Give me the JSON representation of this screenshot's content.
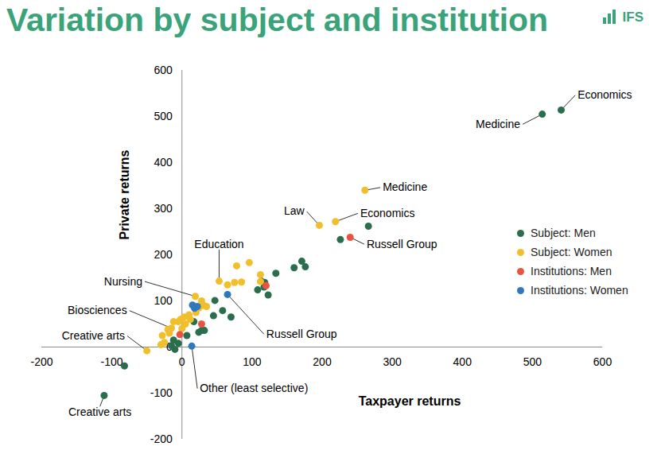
{
  "chart_data": {
    "type": "scatter",
    "title": "Variation by subject and institution",
    "logo": "IFS",
    "x_label": "Taxpayer returns",
    "y_label": "Private returns",
    "xlim": [
      -200,
      600
    ],
    "ylim": [
      -200,
      600
    ],
    "xticks": [
      -200,
      -100,
      0,
      100,
      200,
      300,
      400,
      500,
      600
    ],
    "yticks": [
      -200,
      -100,
      0,
      100,
      200,
      300,
      400,
      500,
      600
    ],
    "grid": false,
    "legend": "right",
    "series": [
      {
        "name": "Subject: Men",
        "color": "#2a6e4d",
        "x": [
          541,
          514,
          266,
          226,
          176,
          171,
          160,
          134,
          118,
          113,
          123,
          108,
          117,
          70,
          58,
          47,
          45,
          32,
          24,
          28,
          17,
          -82,
          -111,
          -12,
          -10,
          -5,
          7,
          -15
        ],
        "values": [
          514,
          505,
          262,
          233,
          174,
          186,
          172,
          160,
          140,
          143,
          113,
          124,
          130,
          65,
          79,
          101,
          68,
          36,
          32,
          36,
          55,
          -41,
          -105,
          15,
          -5,
          8,
          25,
          3
        ],
        "labels": [
          "Economics",
          "Medicine",
          null,
          null,
          null,
          null,
          null,
          null,
          null,
          null,
          null,
          null,
          null,
          null,
          null,
          null,
          null,
          null,
          null,
          null,
          null,
          null,
          "Creative arts",
          null,
          null,
          null,
          null,
          null
        ]
      },
      {
        "name": "Subject: Women",
        "color": "#f2bf2c",
        "x": [
          261,
          219,
          196,
          96,
          78,
          112,
          53,
          19,
          65,
          75,
          85,
          112,
          28,
          31,
          24,
          35,
          10,
          3,
          -2,
          -5,
          -12,
          -15,
          -20,
          -18,
          -50,
          -28,
          -25,
          -30,
          0,
          5,
          20,
          12
        ],
        "values": [
          340,
          272,
          264,
          183,
          176,
          157,
          143,
          110,
          135,
          140,
          141,
          142,
          100,
          90,
          85,
          88,
          70,
          65,
          60,
          55,
          55,
          41,
          38,
          30,
          -8,
          25,
          10,
          5,
          40,
          50,
          75,
          60
        ],
        "labels": [
          "Medicine",
          "Economics",
          "Law",
          null,
          null,
          null,
          "Education",
          "Nursing",
          null,
          null,
          null,
          null,
          null,
          null,
          null,
          null,
          null,
          null,
          null,
          null,
          null,
          "Biosciences",
          null,
          null,
          "Creative arts",
          null,
          null,
          null,
          null,
          null,
          null,
          null
        ]
      },
      {
        "name": "Institutions: Men",
        "color": "#e8543f",
        "x": [
          240,
          120,
          28,
          -3
        ],
        "values": [
          238,
          133,
          50,
          27
        ],
        "labels": [
          "Russell Group",
          null,
          null,
          null
        ]
      },
      {
        "name": "Institutions: Women",
        "color": "#2f78c0",
        "x": [
          65,
          15,
          18,
          22,
          14
        ],
        "values": [
          114,
          91,
          84,
          88,
          2
        ],
        "labels": [
          "Russell Group",
          null,
          null,
          null,
          "Other (least selective)"
        ]
      }
    ]
  }
}
